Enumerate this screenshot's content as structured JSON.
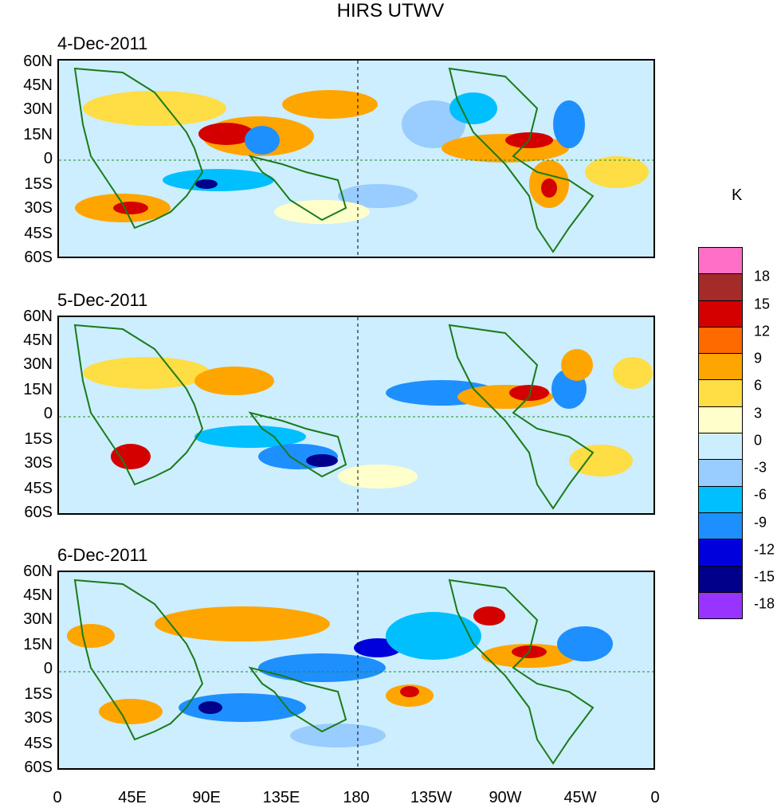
{
  "title": "HIRS UTWV",
  "panels": [
    {
      "date": "4-Dec-2011"
    },
    {
      "date": "5-Dec-2011"
    },
    {
      "date": "6-Dec-2011"
    }
  ],
  "lat_labels": [
    "60N",
    "45N",
    "30N",
    "15N",
    "0",
    "15S",
    "30S",
    "45S",
    "60S"
  ],
  "lon_labels": [
    "0",
    "45E",
    "90E",
    "135E",
    "180",
    "135W",
    "90W",
    "45W",
    "0"
  ],
  "colorbar": {
    "unit": "K",
    "levels": [
      "18",
      "15",
      "12",
      "9",
      "6",
      "3",
      "0",
      "-3",
      "-6",
      "-9",
      "-12",
      "-15",
      "-18"
    ],
    "colors": [
      "#ff6ec7",
      "#a52a2a",
      "#d40000",
      "#ff6a00",
      "#ffa500",
      "#ffdd44",
      "#ffffcc",
      "#cceeff",
      "#99ccff",
      "#00bfff",
      "#1e8fff",
      "#0000dd",
      "#00008b",
      "#9933ff"
    ]
  }
}
